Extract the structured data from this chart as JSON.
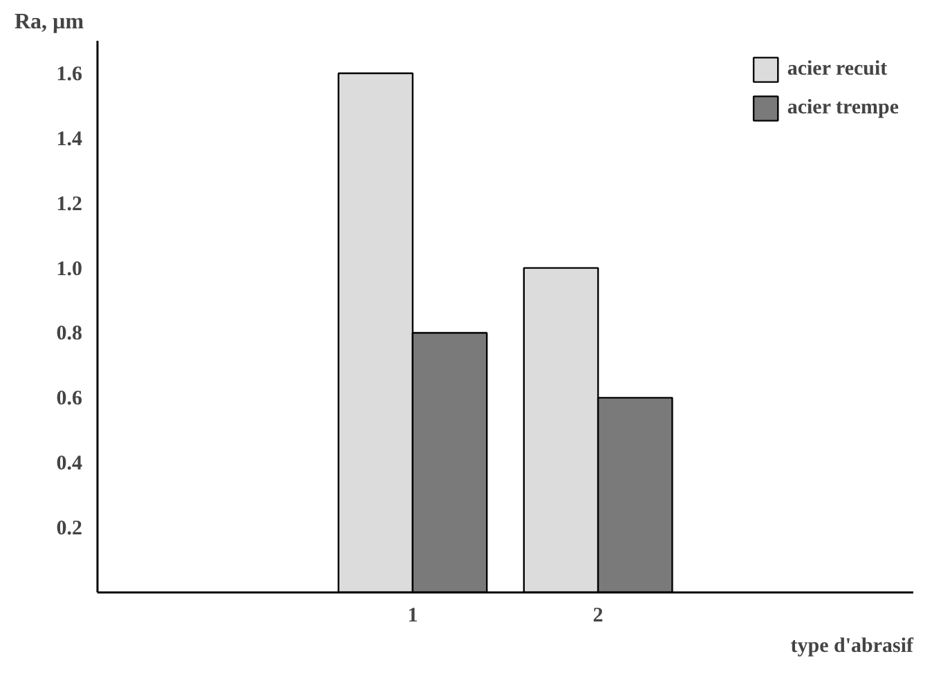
{
  "chart_data": {
    "type": "bar",
    "ylabel": "Ra, µm",
    "xlabel": "type d'abrasif",
    "categories": [
      "1",
      "2"
    ],
    "series": [
      {
        "name": "acier recuit",
        "color": "#dcdcdc",
        "values": [
          1.6,
          1.0
        ]
      },
      {
        "name": "acier trempe",
        "color": "#7a7a7a",
        "values": [
          0.8,
          0.6
        ]
      }
    ],
    "ylim": [
      0,
      1.7
    ],
    "yticks": [
      0.2,
      0.4,
      0.6,
      0.8,
      {
        "value": 1,
        "label": "1.0"
      },
      1.2,
      1.4,
      1.6
    ],
    "grid": false,
    "legend": "top right"
  }
}
